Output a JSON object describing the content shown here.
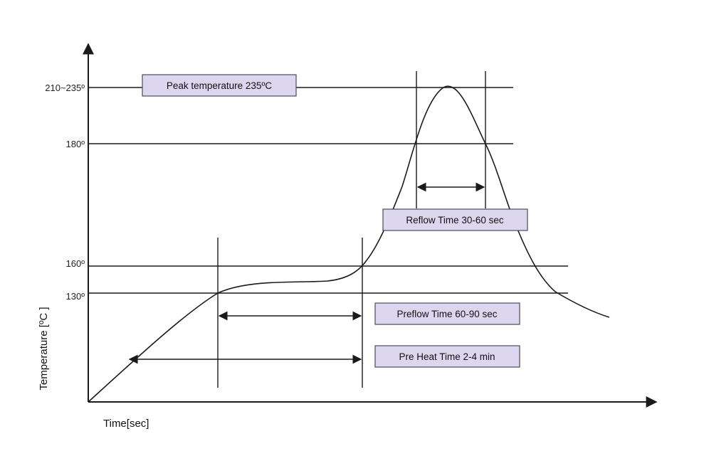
{
  "diagram": {
    "axes": {
      "x_label": "Time[sec]",
      "y_label": "Temperature [ºC ]"
    },
    "temperature_levels": [
      {
        "label": "210~235º"
      },
      {
        "label": "180º"
      },
      {
        "label": "160º"
      },
      {
        "label": "130º"
      }
    ],
    "annotations": {
      "peak": "Peak temperature 235ºC",
      "reflow": "Reflow Time 30-60 sec",
      "preflow": "Preflow Time 60-90 sec",
      "preheat": "Pre Heat Time 2-4 min"
    },
    "colors": {
      "line": "#1a1a1a",
      "box_fill": "#dcd6ee",
      "box_border": "#4a4a5a"
    }
  }
}
